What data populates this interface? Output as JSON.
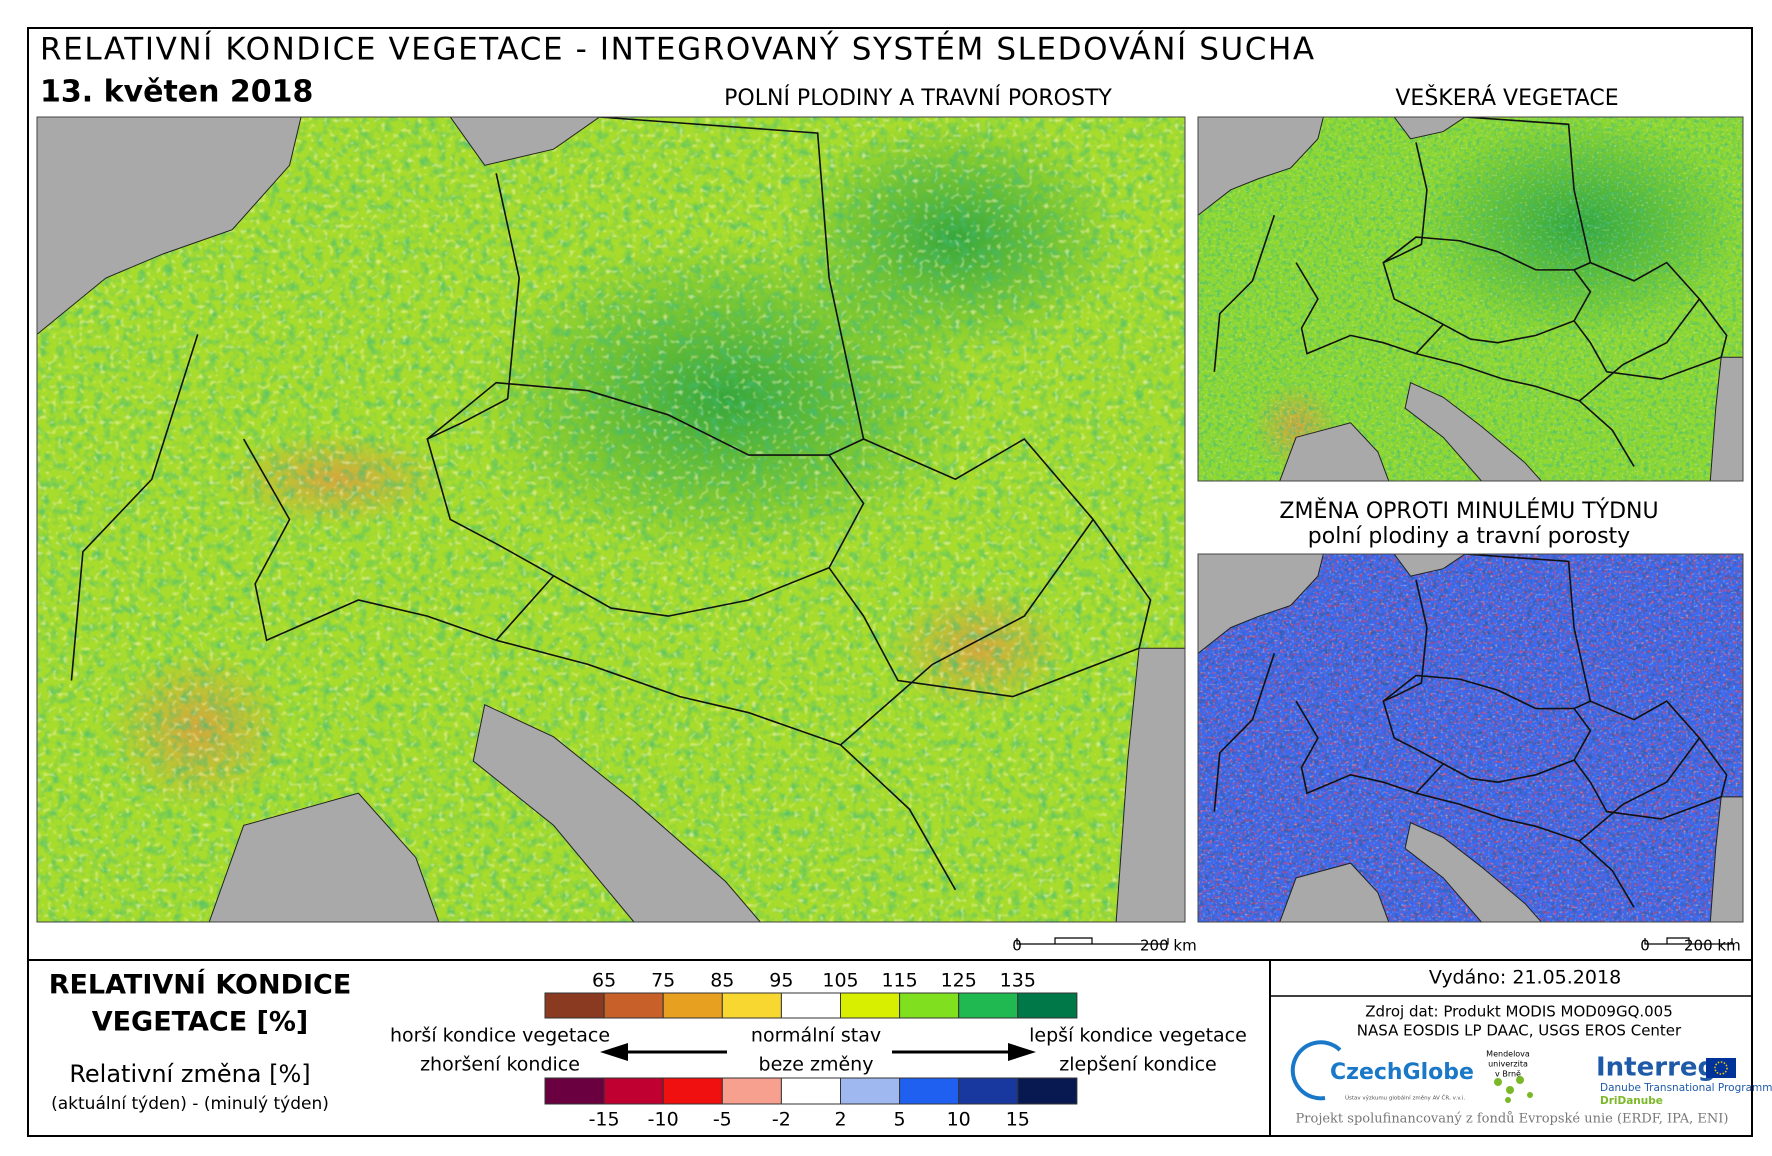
{
  "header": {
    "title": "RELATIVNÍ KONDICE VEGETACE - INTEGROVANÝ SYSTÉM SLEDOVÁNÍ SUCHA",
    "date": "13. květen 2018"
  },
  "maps": {
    "main": {
      "title": "POLNÍ PLODINY A TRAVNÍ POROSTY",
      "scale": [
        "0",
        "200 km"
      ]
    },
    "all_vegetation": {
      "title": "VEŠKERÁ VEGETACE"
    },
    "change": {
      "title": "ZMĚNA OPROTI MINULÉMU TÝDNU",
      "subtitle": "polní plodiny a travní porosty",
      "scale": [
        "0",
        "200 km"
      ]
    }
  },
  "legend": {
    "title_lines": [
      "RELATIVNÍ KONDICE",
      "VEGETACE [%]"
    ],
    "change_title": "Relativní změna [%]",
    "change_formula": "(aktuální týden) - (minulý týden)",
    "condition": {
      "ticks": [
        65,
        75,
        85,
        95,
        105,
        115,
        125,
        135
      ],
      "colors": [
        "#8b3a22",
        "#c8602a",
        "#e8a020",
        "#f8d830",
        "#ffffff",
        "#d8f000",
        "#80e020",
        "#20b850",
        "#007848"
      ]
    },
    "change": {
      "ticks": [
        -15,
        -10,
        -5,
        -2,
        2,
        5,
        10,
        15
      ],
      "colors": [
        "#6a0040",
        "#c00030",
        "#f01010",
        "#f8a090",
        "#ffffff",
        "#a0b8f0",
        "#2060f0",
        "#1838a0",
        "#081850"
      ]
    },
    "labels": {
      "worse": "horší kondice vegetace",
      "normal": "normální stav",
      "better": "lepší kondice vegetace",
      "worsening": "zhoršení kondice",
      "no_change": "beze změny",
      "improvement": "zlepšení kondice"
    }
  },
  "info": {
    "issued": "Vydáno: 21.05.2018",
    "source": [
      "Zdroj dat: Produkt MODIS MOD09GQ.005",
      "NASA EOSDIS LP DAAC, USGS EROS Center"
    ],
    "logos": {
      "czechglobe": "CzechGlobe",
      "czechglobe_sub": "Ústav výzkumu globální změny AV ČR, v.v.i.",
      "mendel": [
        "Mendelova",
        "univerzita",
        "v Brně"
      ],
      "interreg": "Interreg",
      "programme": "Danube Transnational Programme",
      "project": "DriDanube"
    },
    "footer": "Projekt spolufinancovaný z fondů Evropské unie (ERDF, IPA, ENI)"
  }
}
